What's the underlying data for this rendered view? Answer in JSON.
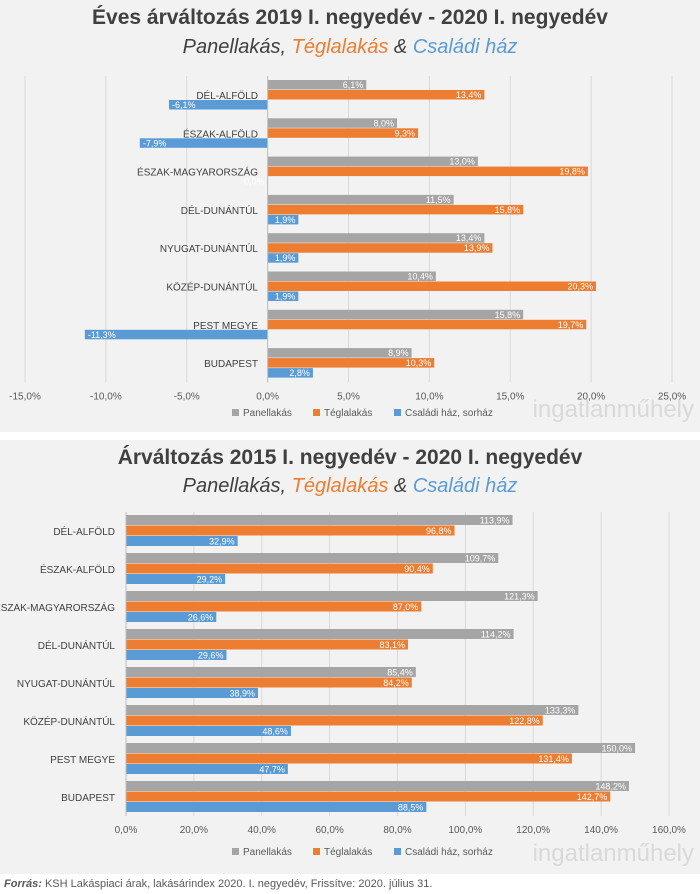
{
  "chart_data": [
    {
      "type": "bar",
      "orientation": "horizontal",
      "title": "Éves árváltozás 2019 I. negyedév - 2020 I. negyedév",
      "subtitle": {
        "part1": "Panellakás",
        "sep1": ", ",
        "part2": "Téglalakás",
        "sep2": " & ",
        "part3": "Családi ház"
      },
      "categories": [
        "DÉL-ALFÖLD",
        "ÉSZAK-ALFÖLD",
        "ÉSZAK-MAGYARORSZÁG",
        "DÉL-DUNÁNTÚL",
        "NYUGAT-DUNÁNTÚL",
        "KÖZÉP-DUNÁNTÚL",
        "PEST MEGYE",
        "BUDAPEST"
      ],
      "series": [
        {
          "name": "Panellakás",
          "color": "#a5a5a5",
          "values": [
            6.1,
            8.0,
            13.0,
            11.5,
            13.4,
            10.4,
            15.8,
            8.9
          ],
          "labels": [
            "6,1%",
            "8,0%",
            "13,0%",
            "11,5%",
            "13,4%",
            "10,4%",
            "15,8%",
            "8,9%"
          ]
        },
        {
          "name": "Téglalakás",
          "color": "#ed7d31",
          "values": [
            13.4,
            9.3,
            19.8,
            15.8,
            13.9,
            20.3,
            19.7,
            10.3
          ],
          "labels": [
            "13,4%",
            "9,3%",
            "19,8%",
            "15,8%",
            "13,9%",
            "20,3%",
            "19,7%",
            "10,3%"
          ]
        },
        {
          "name": "Családi ház, sorház",
          "color": "#5b9bd5",
          "values": [
            -6.1,
            -7.9,
            0.0,
            1.9,
            1.9,
            1.9,
            -11.3,
            2.8
          ],
          "labels": [
            "-6,1%",
            "-7,9%",
            "0,0%",
            "1,9%",
            "1,9%",
            "1,9%",
            "-11,3%",
            "2,8%"
          ]
        }
      ],
      "xlim": [
        -15,
        25
      ],
      "xticks": [
        -15,
        -10,
        -5,
        0,
        5,
        10,
        15,
        20,
        25
      ],
      "xtick_labels": [
        "-15,0%",
        "-10,0%",
        "-5,0%",
        "0,0%",
        "5,0%",
        "10,0%",
        "15,0%",
        "20,0%",
        "25,0%"
      ],
      "legend": "bottom",
      "grid": true
    },
    {
      "type": "bar",
      "orientation": "horizontal",
      "title": "Árváltozás 2015 I. negyedév - 2020 I. negyedév",
      "subtitle": {
        "part1": "Panellakás",
        "sep1": ", ",
        "part2": "Téglalakás",
        "sep2": " & ",
        "part3": "Családi ház"
      },
      "categories": [
        "DÉL-ALFÖLD",
        "ÉSZAK-ALFÖLD",
        "ÉSZAK-MAGYARORSZÁG",
        "DÉL-DUNÁNTÚL",
        "NYUGAT-DUNÁNTÚL",
        "KÖZÉP-DUNÁNTÚL",
        "PEST MEGYE",
        "BUDAPEST"
      ],
      "series": [
        {
          "name": "Panellakás",
          "color": "#a5a5a5",
          "values": [
            113.9,
            109.7,
            121.3,
            114.2,
            85.4,
            133.3,
            150.0,
            148.2
          ],
          "labels": [
            "113,9%",
            "109,7%",
            "121,3%",
            "114,2%",
            "85,4%",
            "133,3%",
            "150,0%",
            "148,2%"
          ]
        },
        {
          "name": "Téglalakás",
          "color": "#ed7d31",
          "values": [
            96.8,
            90.4,
            87.0,
            83.1,
            84.2,
            122.8,
            131.4,
            142.7
          ],
          "labels": [
            "96,8%",
            "90,4%",
            "87,0%",
            "83,1%",
            "84,2%",
            "122,8%",
            "131,4%",
            "142,7%"
          ]
        },
        {
          "name": "Családi ház, sorház",
          "color": "#5b9bd5",
          "values": [
            32.9,
            29.2,
            26.6,
            29.6,
            38.9,
            48.6,
            47.7,
            88.5
          ],
          "labels": [
            "32,9%",
            "29,2%",
            "26,6%",
            "29,6%",
            "38,9%",
            "48,6%",
            "47,7%",
            "88,5%"
          ]
        }
      ],
      "xlim": [
        0,
        160
      ],
      "xticks": [
        0,
        20,
        40,
        60,
        80,
        100,
        120,
        140,
        160
      ],
      "xtick_labels": [
        "0,0%",
        "20,0%",
        "40,0%",
        "60,0%",
        "80,0%",
        "100,0%",
        "120,0%",
        "140,0%",
        "160,0%"
      ],
      "legend": "bottom",
      "grid": true
    }
  ],
  "watermark": "ingatlanműhely",
  "source": {
    "label": "Forrás:",
    "text": " KSH Lakáspiaci árak, lakásárindex 2020. I. negyedév, Frissítve: 2020. július 31."
  }
}
